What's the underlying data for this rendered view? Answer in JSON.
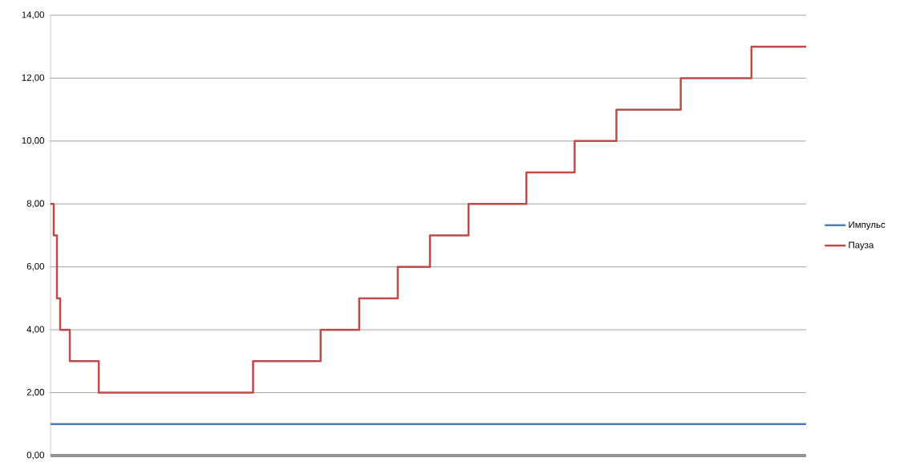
{
  "chart_data": {
    "type": "step",
    "categories": [
      null,
      null,
      null,
      null,
      null,
      null,
      null,
      null,
      null,
      null,
      null,
      null,
      null,
      null,
      null,
      null,
      null,
      null,
      null,
      null,
      null,
      null,
      null,
      null,
      null,
      null,
      null,
      null,
      null,
      null,
      null,
      null,
      null,
      null,
      null,
      null,
      null,
      null,
      null,
      null,
      null,
      null,
      null,
      null,
      null,
      null,
      null,
      null,
      null,
      null,
      null,
      null,
      null,
      null,
      null,
      null,
      null,
      null,
      null,
      null,
      null,
      null,
      null,
      null,
      null,
      null,
      null,
      null,
      null,
      null,
      null,
      null,
      null,
      null,
      null,
      null,
      null,
      null,
      null,
      null,
      null,
      null,
      null,
      null,
      null,
      null,
      null,
      null,
      null,
      null,
      null,
      null,
      null,
      null,
      null,
      null,
      null,
      null,
      null,
      null,
      null,
      null,
      null,
      null,
      null,
      null,
      null,
      null,
      null,
      null,
      null,
      null,
      null,
      null,
      null,
      null,
      null,
      null,
      null,
      null,
      null,
      null,
      null,
      null,
      null,
      null,
      null,
      null,
      null,
      null,
      null,
      null,
      null,
      null,
      null,
      null,
      null,
      null,
      null,
      null,
      null,
      null,
      null,
      null,
      null,
      null,
      null,
      null,
      null,
      null,
      null,
      null,
      null,
      null,
      null,
      null,
      null,
      null,
      null,
      null,
      null,
      null,
      null,
      null,
      null,
      null,
      null,
      null,
      null,
      null,
      null,
      null,
      null,
      null,
      null,
      null,
      null,
      null,
      null,
      null,
      null,
      null,
      null,
      null,
      null,
      null,
      null,
      null,
      null,
      null,
      null,
      null,
      null,
      null,
      null,
      null,
      null,
      null,
      null,
      null,
      null,
      null,
      null,
      null,
      null,
      null,
      null,
      null,
      null,
      null,
      null,
      null,
      null,
      null,
      null,
      null,
      null,
      null,
      null,
      null,
      null,
      null,
      null,
      null,
      null,
      null,
      null,
      null,
      null,
      null,
      null,
      null,
      null,
      null,
      null,
      null
    ],
    "series": [
      {
        "name": "Импульс",
        "color": "#4a7ebb",
        "values": [
          1,
          1,
          1,
          1,
          1,
          1,
          1,
          1,
          1,
          1,
          1,
          1,
          1,
          1,
          1,
          1,
          1,
          1,
          1,
          1,
          1,
          1,
          1,
          1,
          1,
          1,
          1,
          1,
          1,
          1,
          1,
          1,
          1,
          1,
          1,
          1,
          1,
          1,
          1,
          1,
          1,
          1,
          1,
          1,
          1,
          1,
          1,
          1,
          1,
          1,
          1,
          1,
          1,
          1,
          1,
          1,
          1,
          1,
          1,
          1,
          1,
          1,
          1,
          1,
          1,
          1,
          1,
          1,
          1,
          1,
          1,
          1,
          1,
          1,
          1,
          1,
          1,
          1,
          1,
          1,
          1,
          1,
          1,
          1,
          1,
          1,
          1,
          1,
          1,
          1,
          1,
          1,
          1,
          1,
          1,
          1,
          1,
          1,
          1,
          1,
          1,
          1,
          1,
          1,
          1,
          1,
          1,
          1,
          1,
          1,
          1,
          1,
          1,
          1,
          1,
          1,
          1,
          1,
          1,
          1,
          1,
          1,
          1,
          1,
          1,
          1,
          1,
          1,
          1,
          1,
          1,
          1,
          1,
          1,
          1,
          1,
          1,
          1,
          1,
          1,
          1,
          1,
          1,
          1,
          1,
          1,
          1,
          1,
          1,
          1,
          1,
          1,
          1,
          1,
          1,
          1,
          1,
          1,
          1,
          1,
          1,
          1,
          1,
          1,
          1,
          1,
          1,
          1,
          1,
          1,
          1,
          1,
          1,
          1,
          1,
          1,
          1,
          1,
          1,
          1,
          1,
          1,
          1,
          1,
          1,
          1,
          1,
          1,
          1,
          1,
          1,
          1,
          1,
          1,
          1,
          1,
          1,
          1,
          1,
          1,
          1,
          1,
          1,
          1,
          1,
          1,
          1,
          1,
          1,
          1,
          1,
          1,
          1,
          1,
          1,
          1,
          1,
          1,
          1,
          1,
          1,
          1,
          1,
          1,
          1,
          1,
          1,
          1,
          1,
          1,
          1,
          1,
          1,
          1,
          1,
          1
        ]
      },
      {
        "name": "Пауза",
        "color": "#be4b48",
        "values": [
          8,
          7,
          5,
          4,
          4,
          4,
          3,
          3,
          3,
          3,
          3,
          3,
          3,
          3,
          3,
          2,
          2,
          2,
          2,
          2,
          2,
          2,
          2,
          2,
          2,
          2,
          2,
          2,
          2,
          2,
          2,
          2,
          2,
          2,
          2,
          2,
          2,
          2,
          2,
          2,
          2,
          2,
          2,
          2,
          2,
          2,
          2,
          2,
          2,
          2,
          2,
          2,
          2,
          2,
          2,
          2,
          2,
          2,
          2,
          2,
          2,
          2,
          2,
          3,
          3,
          3,
          3,
          3,
          3,
          3,
          3,
          3,
          3,
          3,
          3,
          3,
          3,
          3,
          3,
          3,
          3,
          3,
          3,
          3,
          4,
          4,
          4,
          4,
          4,
          4,
          4,
          4,
          4,
          4,
          4,
          4,
          5,
          5,
          5,
          5,
          5,
          5,
          5,
          5,
          5,
          5,
          5,
          5,
          6,
          6,
          6,
          6,
          6,
          6,
          6,
          6,
          6,
          6,
          7,
          7,
          7,
          7,
          7,
          7,
          7,
          7,
          7,
          7,
          7,
          7,
          8,
          8,
          8,
          8,
          8,
          8,
          8,
          8,
          8,
          8,
          8,
          8,
          8,
          8,
          8,
          8,
          8,
          8,
          9,
          9,
          9,
          9,
          9,
          9,
          9,
          9,
          9,
          9,
          9,
          9,
          9,
          9,
          9,
          10,
          10,
          10,
          10,
          10,
          10,
          10,
          10,
          10,
          10,
          10,
          10,
          10,
          11,
          11,
          11,
          11,
          11,
          11,
          11,
          11,
          11,
          11,
          11,
          11,
          11,
          11,
          11,
          11,
          11,
          11,
          11,
          11,
          12,
          12,
          12,
          12,
          12,
          12,
          12,
          12,
          12,
          12,
          12,
          12,
          12,
          12,
          12,
          12,
          12,
          12,
          12,
          12,
          12,
          12,
          13,
          13,
          13,
          13,
          13,
          13,
          13,
          13,
          13,
          13,
          13,
          13,
          13,
          13,
          13,
          13,
          13,
          13
        ]
      }
    ],
    "ylim": [
      0,
      14
    ],
    "yticks": [
      {
        "value": 0,
        "label": "0,00"
      },
      {
        "value": 2,
        "label": "2,00"
      },
      {
        "value": 4,
        "label": "4,00"
      },
      {
        "value": 6,
        "label": "6,00"
      },
      {
        "value": 8,
        "label": "8,00"
      },
      {
        "value": 10,
        "label": "10,00"
      },
      {
        "value": 12,
        "label": "12,00"
      },
      {
        "value": 14,
        "label": "14,00"
      }
    ],
    "grid": "y",
    "legend": "right",
    "tick_labels": "y",
    "marker": "none",
    "line_style": "solid"
  }
}
